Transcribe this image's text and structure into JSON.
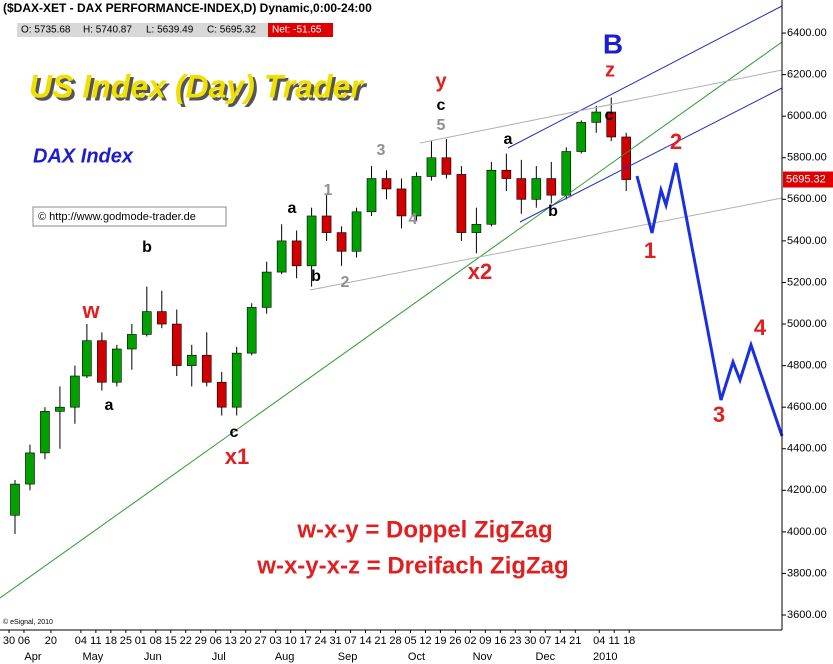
{
  "chart_data": {
    "type": "candlestick",
    "title": "($DAX-XET - DAX PERFORMANCE-INDEX,D) Dynamic,0:00-24:00",
    "quote": [
      "O: 5735.68",
      "H: 5740.87",
      "L: 5639.49",
      "C: 5695.32",
      "Net: -51.65"
    ],
    "watermark": "US Index (Day) Trader",
    "subtitle": "DAX Index",
    "source": "© http://www.godmode-trader.de",
    "copyright": "© eSignal, 2010",
    "legend_lines": [
      "w-x-y = Doppel ZigZag",
      "w-x-y-x-z = Dreifach ZigZag"
    ],
    "wave_labels": [
      "B",
      "z",
      "y",
      "c",
      "5",
      "3",
      "1",
      "a",
      "b",
      "2",
      "4",
      "x2",
      "a",
      "b",
      "c",
      "w",
      "b",
      "a",
      "c",
      "x1",
      "1",
      "2",
      "3",
      "4"
    ],
    "last_price": 5695.32,
    "up_color": "#00a000",
    "down_color": "#d00000",
    "candles": {
      "x": [
        2,
        7,
        12,
        17,
        22,
        26,
        31,
        36,
        41,
        46,
        51,
        56,
        61,
        66,
        71,
        76,
        81,
        86,
        91,
        96,
        101,
        106,
        111,
        116,
        121,
        126,
        131,
        136,
        141,
        146,
        151,
        156,
        161,
        166,
        171,
        176,
        181,
        186,
        191,
        196,
        201,
        206
      ],
      "open": [
        4080,
        4230,
        4380,
        4580,
        4600,
        4750,
        4920,
        4720,
        4880,
        4950,
        5060,
        5000,
        4800,
        4850,
        4720,
        4600,
        4860,
        5080,
        5250,
        5400,
        5280,
        5520,
        5440,
        5350,
        5540,
        5700,
        5650,
        5520,
        5710,
        5800,
        5720,
        5440,
        5480,
        5740,
        5700,
        5600,
        5700,
        5620,
        5830,
        5970,
        6020,
        5900
      ],
      "high": [
        4250,
        4420,
        4600,
        4700,
        4800,
        5000,
        4960,
        4900,
        5000,
        5180,
        5160,
        5070,
        4900,
        4960,
        4770,
        4890,
        5100,
        5300,
        5480,
        5450,
        5560,
        5620,
        5470,
        5560,
        5760,
        5740,
        5700,
        5730,
        5880,
        5890,
        5760,
        5560,
        5780,
        5820,
        5790,
        5760,
        5780,
        5850,
        5980,
        6050,
        6090,
        5920
      ],
      "low": [
        3990,
        4200,
        4350,
        4400,
        4520,
        4740,
        4680,
        4700,
        4780,
        4940,
        4980,
        4750,
        4700,
        4700,
        4560,
        4560,
        4850,
        5050,
        5240,
        5220,
        5180,
        5400,
        5280,
        5320,
        5520,
        5600,
        5460,
        5500,
        5690,
        5700,
        5400,
        5340,
        5470,
        5640,
        5530,
        5560,
        5580,
        5600,
        5820,
        5920,
        5880,
        5640
      ],
      "close": [
        4230,
        4380,
        4580,
        4600,
        4750,
        4920,
        4720,
        4880,
        4950,
        5060,
        5000,
        4800,
        4850,
        4720,
        4600,
        4860,
        5080,
        5250,
        5400,
        5280,
        5520,
        5440,
        5350,
        5540,
        5700,
        5650,
        5520,
        5710,
        5800,
        5720,
        5440,
        5480,
        5740,
        5700,
        5600,
        5700,
        5620,
        5830,
        5970,
        6020,
        5900,
        5695
      ]
    },
    "xlim": [
      -3,
      258
    ],
    "xticks": [
      {
        "value": 0,
        "label": "30"
      },
      {
        "value": 5,
        "label": "06"
      },
      {
        "value": 14,
        "label": "20"
      },
      {
        "value": 24,
        "label": "04"
      },
      {
        "value": 29,
        "label": "11"
      },
      {
        "value": 34,
        "label": "18"
      },
      {
        "value": 39,
        "label": "25"
      },
      {
        "value": 44,
        "label": "01"
      },
      {
        "value": 49,
        "label": "08"
      },
      {
        "value": 54,
        "label": "15"
      },
      {
        "value": 59,
        "label": "22"
      },
      {
        "value": 64,
        "label": "29"
      },
      {
        "value": 69,
        "label": "06"
      },
      {
        "value": 74,
        "label": "13"
      },
      {
        "value": 79,
        "label": "20"
      },
      {
        "value": 84,
        "label": "27"
      },
      {
        "value": 89,
        "label": "03"
      },
      {
        "value": 94,
        "label": "10"
      },
      {
        "value": 99,
        "label": "17"
      },
      {
        "value": 104,
        "label": "24"
      },
      {
        "value": 109,
        "label": "31"
      },
      {
        "value": 114,
        "label": "07"
      },
      {
        "value": 119,
        "label": "14"
      },
      {
        "value": 124,
        "label": "21"
      },
      {
        "value": 129,
        "label": "28"
      },
      {
        "value": 134,
        "label": "05"
      },
      {
        "value": 139,
        "label": "12"
      },
      {
        "value": 144,
        "label": "19"
      },
      {
        "value": 149,
        "label": "26"
      },
      {
        "value": 154,
        "label": "02"
      },
      {
        "value": 159,
        "label": "09"
      },
      {
        "value": 164,
        "label": "16"
      },
      {
        "value": 169,
        "label": "23"
      },
      {
        "value": 174,
        "label": "30"
      },
      {
        "value": 179,
        "label": "07"
      },
      {
        "value": 184,
        "label": "14"
      },
      {
        "value": 189,
        "label": "21"
      },
      {
        "value": 197,
        "label": "04"
      },
      {
        "value": 202,
        "label": "11"
      },
      {
        "value": 207,
        "label": "18"
      }
    ],
    "month_ticks": [
      {
        "value": 8,
        "label": "Apr"
      },
      {
        "value": 28,
        "label": "May"
      },
      {
        "value": 48,
        "label": "Jun"
      },
      {
        "value": 70,
        "label": "Jul"
      },
      {
        "value": 92,
        "label": "Aug"
      },
      {
        "value": 113,
        "label": "Sep"
      },
      {
        "value": 136,
        "label": "Oct"
      },
      {
        "value": 158,
        "label": "Nov"
      },
      {
        "value": 179,
        "label": "Dec"
      },
      {
        "value": 199,
        "label": "2010"
      }
    ],
    "ylim": [
      3528,
      6559
    ],
    "yticks": [
      {
        "value": 3600,
        "label": "3600.00"
      },
      {
        "value": 3800,
        "label": "3800.00"
      },
      {
        "value": 4000,
        "label": "4000.00"
      },
      {
        "value": 4200,
        "label": "4200.00"
      },
      {
        "value": 4400,
        "label": "4400.00"
      },
      {
        "value": 4600,
        "label": "4600.00"
      },
      {
        "value": 4800,
        "label": "4800.00"
      },
      {
        "value": 5000,
        "label": "5000.00"
      },
      {
        "value": 5200,
        "label": "5200.00"
      },
      {
        "value": 5400,
        "label": "5400.00"
      },
      {
        "value": 5600,
        "label": "5600.00"
      },
      {
        "value": 5800,
        "label": "5800.00"
      },
      {
        "value": 6000,
        "label": "6000.00"
      },
      {
        "value": 6200,
        "label": "6200.00"
      },
      {
        "value": 6400,
        "label": "6400.00"
      }
    ]
  }
}
